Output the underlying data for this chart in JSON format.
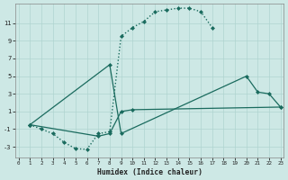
{
  "xlabel": "Humidex (Indice chaleur)",
  "background_color": "#cde8e5",
  "grid_color": "#afd4d0",
  "line_color": "#1a6b5e",
  "xlim": [
    -0.3,
    23.3
  ],
  "ylim": [
    -4.2,
    13.2
  ],
  "xticks": [
    0,
    1,
    2,
    3,
    4,
    5,
    6,
    7,
    8,
    9,
    10,
    11,
    12,
    13,
    14,
    15,
    16,
    17,
    18,
    19,
    20,
    21,
    22,
    23
  ],
  "yticks": [
    -3,
    -1,
    1,
    3,
    5,
    7,
    9,
    11
  ],
  "line1_x": [
    1,
    2,
    3,
    4,
    5,
    6,
    7,
    8,
    9,
    10,
    11,
    12,
    13,
    14,
    15,
    16,
    17
  ],
  "line1_y": [
    -0.5,
    -1.0,
    -1.5,
    -2.5,
    -3.2,
    -3.3,
    -1.5,
    -1.3,
    9.5,
    10.5,
    11.2,
    12.3,
    12.5,
    12.7,
    12.7,
    12.3,
    10.5
  ],
  "line2_x": [
    1,
    8,
    9,
    20,
    21,
    22,
    23
  ],
  "line2_y": [
    -0.5,
    6.3,
    -1.5,
    5.0,
    3.2,
    3.0,
    1.5
  ],
  "line3_x": [
    1,
    7,
    8,
    9,
    10,
    23
  ],
  "line3_y": [
    -0.5,
    -1.8,
    -1.5,
    1.0,
    1.2,
    1.5
  ]
}
